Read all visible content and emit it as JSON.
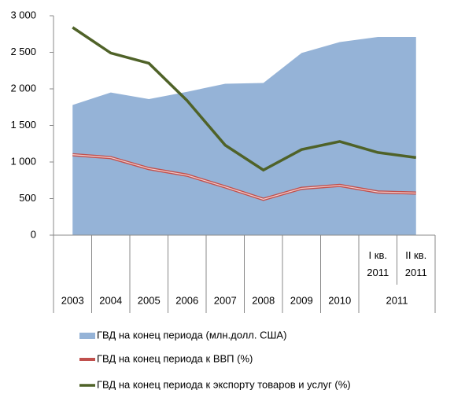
{
  "chart_data": {
    "type": "area_line",
    "categories": [
      null,
      null,
      null,
      null,
      null,
      null,
      null,
      null,
      "I кв. 2011",
      "II кв. 2011"
    ],
    "category_groups": [
      {
        "label": "2003",
        "size": 1
      },
      {
        "label": "2004",
        "size": 1
      },
      {
        "label": "2005",
        "size": 1
      },
      {
        "label": "2006",
        "size": 1
      },
      {
        "label": "2007",
        "size": 1
      },
      {
        "label": "2008",
        "size": 1
      },
      {
        "label": "2009",
        "size": 1
      },
      {
        "label": "2010",
        "size": 1
      },
      {
        "label": "2011",
        "size": 2
      }
    ],
    "series": [
      {
        "name": "ГВД на конец периода (млн.долл. США)",
        "kind": "area",
        "color": "#95b3d7",
        "values": [
          1780,
          1950,
          1860,
          1960,
          2070,
          2080,
          2490,
          2640,
          2710,
          2710
        ]
      },
      {
        "name": "ГВД на конец периода к ВВП (%)",
        "kind": "line",
        "color": "#c0504d",
        "values": [
          1100,
          1060,
          910,
          820,
          660,
          490,
          640,
          680,
          590,
          575
        ]
      },
      {
        "name": "ГВД на конец периода к экспорту товаров и услуг (%)",
        "kind": "line",
        "color": "#4f6228",
        "values": [
          2840,
          2490,
          2350,
          1840,
          1230,
          890,
          1170,
          1280,
          1130,
          1060
        ]
      }
    ],
    "ylim": [
      0,
      3000
    ],
    "yticks": [
      0,
      500,
      {
        "value": 1000,
        "label": "1 000"
      },
      {
        "value": 1500,
        "label": "1 500"
      },
      {
        "value": 2000,
        "label": "2 000"
      },
      {
        "value": 2500,
        "label": "2 500"
      },
      {
        "value": 3000,
        "label": "3 000"
      }
    ]
  }
}
